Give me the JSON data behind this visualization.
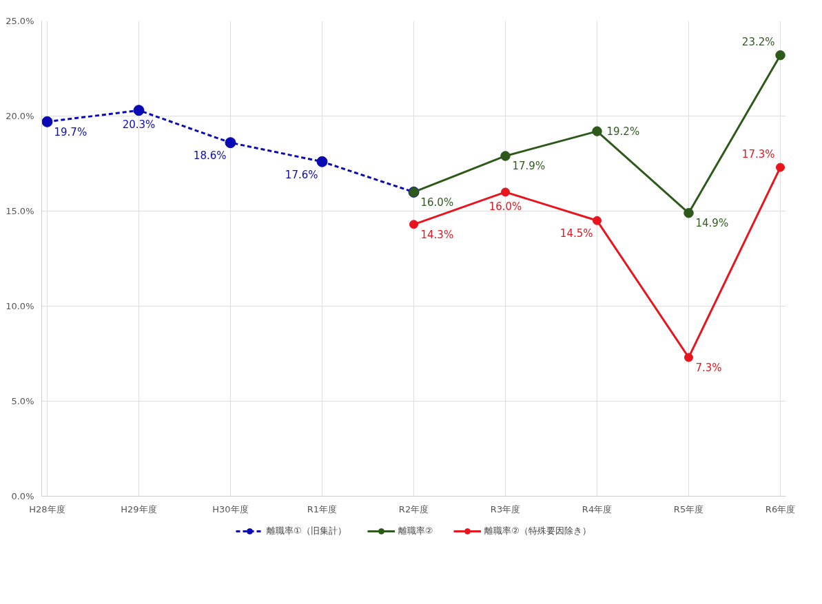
{
  "chart_data": {
    "type": "line",
    "categories": [
      "H28年度",
      "H29年度",
      "H30年度",
      "R1年度",
      "R2年度",
      "R3年度",
      "R4年度",
      "R5年度",
      "R6年度"
    ],
    "series": [
      {
        "name": "離職率①（旧集計）",
        "color": "#0a0ab4",
        "line_style": "dashed",
        "values": [
          19.7,
          20.3,
          18.6,
          17.6,
          16.0,
          null,
          null,
          null,
          null
        ],
        "value_labels": [
          "19.7%",
          "20.3%",
          "18.6%",
          "17.6%",
          null,
          null,
          null,
          null,
          null
        ]
      },
      {
        "name": "離職率②",
        "color": "#2d5a1b",
        "line_style": "solid",
        "values": [
          null,
          null,
          null,
          null,
          16.0,
          17.9,
          19.2,
          14.9,
          23.2
        ],
        "value_labels": [
          null,
          null,
          null,
          null,
          "16.0%",
          "17.9%",
          "19.2%",
          "14.9%",
          "23.2%"
        ]
      },
      {
        "name": "離職率②（特殊要因除き）",
        "color": "#e8141e",
        "line_style": "solid",
        "values": [
          null,
          null,
          null,
          null,
          14.3,
          16.0,
          14.5,
          7.3,
          17.3
        ],
        "value_labels": [
          null,
          null,
          null,
          null,
          "14.3%",
          "16.0%",
          "14.5%",
          "7.3%",
          "17.3%"
        ]
      }
    ],
    "ylim": [
      0,
      25
    ],
    "yticks": [
      {
        "value": 0,
        "label": "0.0%"
      },
      {
        "value": 5,
        "label": "5.0%"
      },
      {
        "value": 10,
        "label": "10.0%"
      },
      {
        "value": 15,
        "label": "15.0%"
      },
      {
        "value": 20,
        "label": "20.0%"
      },
      {
        "value": 25,
        "label": "25.0%"
      }
    ],
    "grid": true,
    "legend": "bottom",
    "marker": "circle"
  }
}
